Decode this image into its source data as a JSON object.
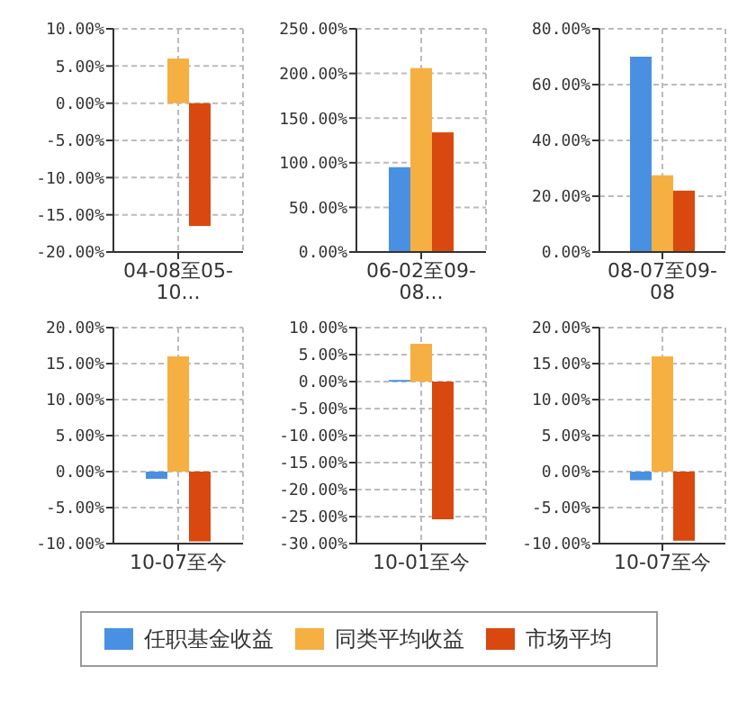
{
  "chart_data": [
    {
      "type": "bar",
      "categories": [
        "04-08至05-10..."
      ],
      "legend": "bottom",
      "grid": true,
      "ylim": [
        -20,
        10
      ],
      "yticks": [
        {
          "value": -20,
          "label": "-20.00%"
        },
        {
          "value": -15,
          "label": "-15.00%"
        },
        {
          "value": -10,
          "label": "-10.00%"
        },
        {
          "value": -5,
          "label": "-5.00%"
        },
        {
          "value": 0,
          "label": "0.00%"
        },
        {
          "value": 5,
          "label": "5.00%"
        },
        {
          "value": 10,
          "label": "10.00%"
        }
      ],
      "series": [
        {
          "name": "任职基金收益",
          "color": "#4a90e2",
          "values": [
            null
          ]
        },
        {
          "name": "同类平均收益",
          "color": "#f5b041",
          "values": [
            6
          ]
        },
        {
          "name": "市场平均",
          "color": "#d9480f",
          "values": [
            -16.5
          ]
        }
      ]
    },
    {
      "type": "bar",
      "categories": [
        "06-02至09-08..."
      ],
      "grid": true,
      "ylim": [
        0,
        250
      ],
      "yticks": [
        {
          "value": 0,
          "label": "0.00%"
        },
        {
          "value": 50,
          "label": "50.00%"
        },
        {
          "value": 100,
          "label": "100.00%"
        },
        {
          "value": 150,
          "label": "150.00%"
        },
        {
          "value": 200,
          "label": "200.00%"
        },
        {
          "value": 250,
          "label": "250.00%"
        }
      ],
      "series": [
        {
          "color": "#4a90e2",
          "values": [
            95
          ]
        },
        {
          "color": "#f5b041",
          "values": [
            206
          ]
        },
        {
          "color": "#d9480f",
          "values": [
            134
          ]
        }
      ]
    },
    {
      "type": "bar",
      "categories": [
        "08-07至09-08"
      ],
      "grid": true,
      "ylim": [
        0,
        80
      ],
      "yticks": [
        {
          "value": 0,
          "label": "0.00%"
        },
        {
          "value": 20,
          "label": "20.00%"
        },
        {
          "value": 40,
          "label": "40.00%"
        },
        {
          "value": 60,
          "label": "60.00%"
        },
        {
          "value": 80,
          "label": "80.00%"
        }
      ],
      "series": [
        {
          "color": "#4a90e2",
          "values": [
            70
          ]
        },
        {
          "color": "#f5b041",
          "values": [
            27.5
          ]
        },
        {
          "color": "#d9480f",
          "values": [
            22
          ]
        }
      ]
    },
    {
      "type": "bar",
      "categories": [
        "10-07至今"
      ],
      "grid": true,
      "ylim": [
        -10,
        20
      ],
      "yticks": [
        {
          "value": -10,
          "label": "-10.00%"
        },
        {
          "value": -5,
          "label": "-5.00%"
        },
        {
          "value": 0,
          "label": "0.00%"
        },
        {
          "value": 5,
          "label": "5.00%"
        },
        {
          "value": 10,
          "label": "10.00%"
        },
        {
          "value": 15,
          "label": "15.00%"
        },
        {
          "value": 20,
          "label": "20.00%"
        }
      ],
      "series": [
        {
          "color": "#4a90e2",
          "values": [
            -1
          ]
        },
        {
          "color": "#f5b041",
          "values": [
            16
          ]
        },
        {
          "color": "#d9480f",
          "values": [
            -9.7
          ]
        }
      ]
    },
    {
      "type": "bar",
      "categories": [
        "10-01至今"
      ],
      "grid": true,
      "ylim": [
        -30,
        10
      ],
      "yticks": [
        {
          "value": -30,
          "label": "-30.00%"
        },
        {
          "value": -25,
          "label": "-25.00%"
        },
        {
          "value": -20,
          "label": "-20.00%"
        },
        {
          "value": -15,
          "label": "-15.00%"
        },
        {
          "value": -10,
          "label": "-10.00%"
        },
        {
          "value": -5,
          "label": "-5.00%"
        },
        {
          "value": 0,
          "label": "0.00%"
        },
        {
          "value": 5,
          "label": "5.00%"
        },
        {
          "value": 10,
          "label": "10.00%"
        }
      ],
      "series": [
        {
          "color": "#4a90e2",
          "values": [
            0.3
          ]
        },
        {
          "color": "#f5b041",
          "values": [
            7
          ]
        },
        {
          "color": "#d9480f",
          "values": [
            -25.5
          ]
        }
      ]
    },
    {
      "type": "bar",
      "categories": [
        "10-07至今"
      ],
      "grid": true,
      "ylim": [
        -10,
        20
      ],
      "yticks": [
        {
          "value": -10,
          "label": "-10.00%"
        },
        {
          "value": -5,
          "label": "-5.00%"
        },
        {
          "value": 0,
          "label": "0.00%"
        },
        {
          "value": 5,
          "label": "5.00%"
        },
        {
          "value": 10,
          "label": "10.00%"
        },
        {
          "value": 15,
          "label": "15.00%"
        },
        {
          "value": 20,
          "label": "20.00%"
        }
      ],
      "series": [
        {
          "color": "#4a90e2",
          "values": [
            -1.2
          ]
        },
        {
          "color": "#f5b041",
          "values": [
            16
          ]
        },
        {
          "color": "#d9480f",
          "values": [
            -9.6
          ]
        }
      ]
    }
  ]
}
